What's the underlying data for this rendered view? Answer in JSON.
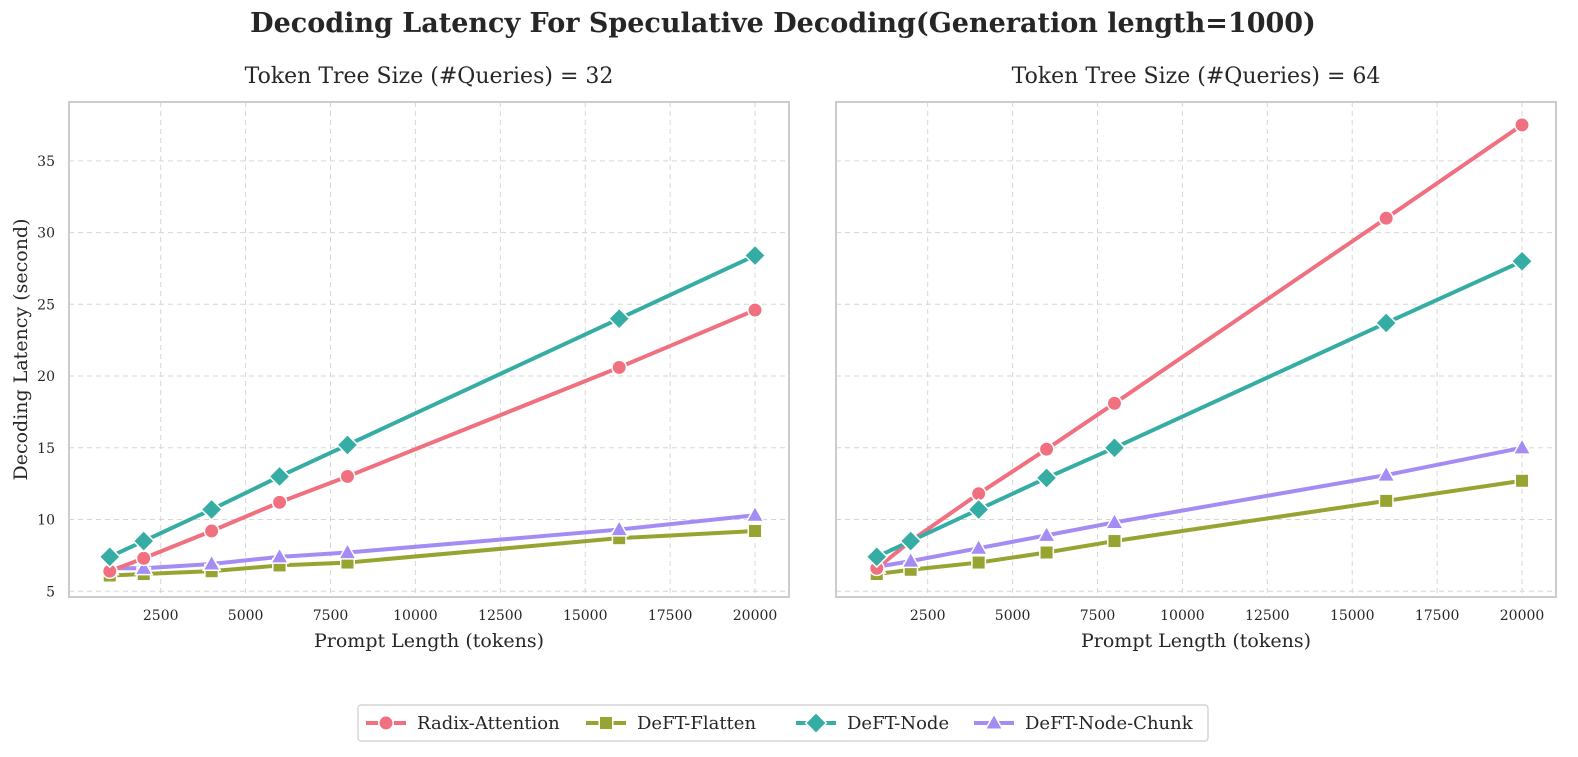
{
  "figure_title": "Decoding Latency For Speculative Decoding(Generation length=1000)",
  "chart_data": [
    {
      "type": "line",
      "title": "Token Tree Size (#Queries) = 32",
      "xlabel": "Prompt Length (tokens)",
      "ylabel": "Decoding Latency (second)",
      "x": [
        1000,
        2000,
        4000,
        6000,
        8000,
        16000,
        20000
      ],
      "xlim": [
        -200,
        21000
      ],
      "ylim": [
        4.6,
        39.1
      ],
      "xticks": [
        2500,
        5000,
        7500,
        10000,
        12500,
        15000,
        17500,
        20000
      ],
      "yticks": [
        5,
        10,
        15,
        20,
        25,
        30,
        35
      ],
      "grid": true,
      "series": [
        {
          "name": "Radix-Attention",
          "color": "#f0707f",
          "marker": "circle",
          "values": [
            6.4,
            7.3,
            9.2,
            11.2,
            13.0,
            20.6,
            24.6
          ]
        },
        {
          "name": "DeFT-Flatten",
          "color": "#97a431",
          "marker": "square",
          "values": [
            6.1,
            6.2,
            6.4,
            6.8,
            7.0,
            8.7,
            9.2
          ]
        },
        {
          "name": "DeFT-Node",
          "color": "#36ada4",
          "marker": "diamond",
          "values": [
            7.4,
            8.5,
            10.7,
            13.0,
            15.2,
            24.0,
            28.4
          ]
        },
        {
          "name": "DeFT-Node-Chunk",
          "color": "#a48cf4",
          "marker": "triangle",
          "values": [
            6.6,
            6.6,
            6.9,
            7.4,
            7.7,
            9.3,
            10.3
          ]
        }
      ]
    },
    {
      "type": "line",
      "title": "Token Tree Size (#Queries) = 64",
      "xlabel": "Prompt Length (tokens)",
      "ylabel": "",
      "x": [
        1000,
        2000,
        4000,
        6000,
        8000,
        16000,
        20000
      ],
      "xlim": [
        -200,
        21000
      ],
      "ylim": [
        4.6,
        39.1
      ],
      "xticks": [
        2500,
        5000,
        7500,
        10000,
        12500,
        15000,
        17500,
        20000
      ],
      "yticks": [
        5,
        10,
        15,
        20,
        25,
        30,
        35
      ],
      "grid": true,
      "series": [
        {
          "name": "Radix-Attention",
          "color": "#f0707f",
          "marker": "circle",
          "values": [
            6.6,
            8.5,
            11.8,
            14.9,
            18.1,
            31.0,
            37.5
          ]
        },
        {
          "name": "DeFT-Flatten",
          "color": "#97a431",
          "marker": "square",
          "values": [
            6.2,
            6.5,
            7.0,
            7.7,
            8.5,
            11.3,
            12.7
          ]
        },
        {
          "name": "DeFT-Node",
          "color": "#36ada4",
          "marker": "diamond",
          "values": [
            7.4,
            8.5,
            10.7,
            12.9,
            15.0,
            23.7,
            28.0
          ]
        },
        {
          "name": "DeFT-Node-Chunk",
          "color": "#a48cf4",
          "marker": "triangle",
          "values": [
            6.7,
            7.1,
            8.0,
            8.9,
            9.8,
            13.1,
            15.0
          ]
        }
      ]
    }
  ],
  "legend": [
    {
      "name": "Radix-Attention",
      "color": "#f0707f",
      "marker": "circle"
    },
    {
      "name": "DeFT-Flatten",
      "color": "#97a431",
      "marker": "square"
    },
    {
      "name": "DeFT-Node",
      "color": "#36ada4",
      "marker": "diamond"
    },
    {
      "name": "DeFT-Node-Chunk",
      "color": "#a48cf4",
      "marker": "triangle"
    }
  ]
}
